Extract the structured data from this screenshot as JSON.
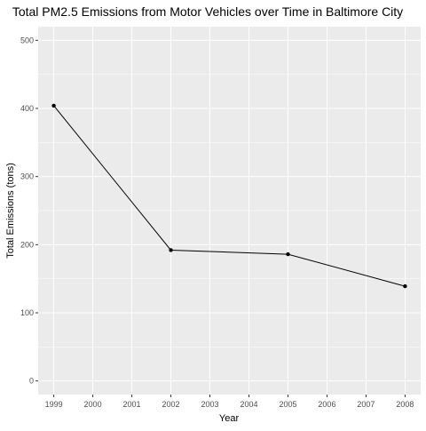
{
  "chart_data": {
    "type": "line",
    "title": "Total PM2.5 Emissions from Motor Vehicles over Time in Baltimore City",
    "xlabel": "Year",
    "ylabel": "Total Emissions (tons)",
    "x_ticks": [
      "1999",
      "2000",
      "2001",
      "2002",
      "2003",
      "2004",
      "2005",
      "2006",
      "2007",
      "2008"
    ],
    "y_ticks": [
      "0",
      "100",
      "200",
      "300",
      "400",
      "500"
    ],
    "xlim": [
      1998.6,
      2008.4
    ],
    "ylim": [
      -20,
      520
    ],
    "series": [
      {
        "x": [
          1999,
          2002,
          2005,
          2008
        ],
        "y": [
          404,
          192,
          186,
          139
        ]
      }
    ],
    "grid": true,
    "colors": {
      "panel": "#EBEBEB",
      "grid_major": "#FFFFFF",
      "line": "#000000",
      "point": "#000000"
    }
  }
}
